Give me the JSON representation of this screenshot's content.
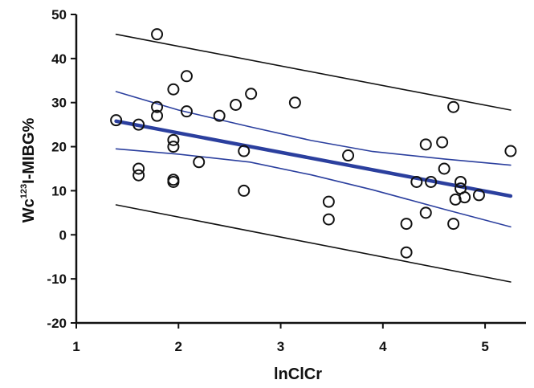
{
  "chart_data": {
    "type": "scatter",
    "xlabel": "lnClCr",
    "ylabel": {
      "prefix": "Wc",
      "superscript": "123",
      "suffix": "I-MIBG%"
    },
    "xlim": [
      1,
      5.4
    ],
    "ylim": [
      -20,
      50
    ],
    "x_ticks": [
      1,
      2,
      3,
      4,
      5
    ],
    "y_ticks": [
      -20,
      -10,
      0,
      10,
      20,
      30,
      40,
      50
    ],
    "grid": false,
    "legend": "none",
    "points": [
      {
        "x": 1.39,
        "y": 26
      },
      {
        "x": 1.61,
        "y": 25
      },
      {
        "x": 1.61,
        "y": 15
      },
      {
        "x": 1.61,
        "y": 13.5
      },
      {
        "x": 1.79,
        "y": 45.5
      },
      {
        "x": 1.79,
        "y": 29
      },
      {
        "x": 1.79,
        "y": 27
      },
      {
        "x": 1.95,
        "y": 33
      },
      {
        "x": 1.95,
        "y": 21.5
      },
      {
        "x": 1.95,
        "y": 20
      },
      {
        "x": 1.95,
        "y": 12.5
      },
      {
        "x": 1.95,
        "y": 12
      },
      {
        "x": 2.08,
        "y": 36
      },
      {
        "x": 2.08,
        "y": 28
      },
      {
        "x": 2.2,
        "y": 16.5
      },
      {
        "x": 2.4,
        "y": 27
      },
      {
        "x": 2.56,
        "y": 29.5
      },
      {
        "x": 2.64,
        "y": 19
      },
      {
        "x": 2.64,
        "y": 10
      },
      {
        "x": 2.71,
        "y": 32
      },
      {
        "x": 3.14,
        "y": 30
      },
      {
        "x": 3.47,
        "y": 7.5
      },
      {
        "x": 3.47,
        "y": 3.5
      },
      {
        "x": 3.66,
        "y": 18
      },
      {
        "x": 4.23,
        "y": 2.5
      },
      {
        "x": 4.23,
        "y": -4
      },
      {
        "x": 4.33,
        "y": 12
      },
      {
        "x": 4.42,
        "y": 20.5
      },
      {
        "x": 4.42,
        "y": 5
      },
      {
        "x": 4.47,
        "y": 12
      },
      {
        "x": 4.58,
        "y": 21
      },
      {
        "x": 4.6,
        "y": 15
      },
      {
        "x": 4.69,
        "y": 29
      },
      {
        "x": 4.69,
        "y": 2.5
      },
      {
        "x": 4.71,
        "y": 8
      },
      {
        "x": 4.76,
        "y": 12
      },
      {
        "x": 4.76,
        "y": 10.5
      },
      {
        "x": 4.8,
        "y": 8.5
      },
      {
        "x": 4.94,
        "y": 9
      },
      {
        "x": 5.25,
        "y": 19
      }
    ],
    "lines": [
      {
        "role": "regression",
        "color": "#2b3f9e",
        "width": 4.5,
        "points": [
          [
            1.39,
            25.8
          ],
          [
            5.25,
            8.8
          ]
        ]
      },
      {
        "role": "ci-upper",
        "color": "#2b3f9e",
        "width": 1.6,
        "points": [
          [
            1.39,
            32.5
          ],
          [
            2.0,
            28.3
          ],
          [
            2.7,
            24.5
          ],
          [
            3.3,
            21.4
          ],
          [
            3.9,
            18.9
          ],
          [
            4.6,
            17.2
          ],
          [
            5.25,
            15.8
          ]
        ]
      },
      {
        "role": "ci-lower",
        "color": "#2b3f9e",
        "width": 1.6,
        "points": [
          [
            1.39,
            19.5
          ],
          [
            2.0,
            18.3
          ],
          [
            2.7,
            16.5
          ],
          [
            3.3,
            13.6
          ],
          [
            3.9,
            10.2
          ],
          [
            4.6,
            5.8
          ],
          [
            5.25,
            1.8
          ]
        ]
      },
      {
        "role": "pi-upper",
        "color": "#111111",
        "width": 1.6,
        "points": [
          [
            1.39,
            45.5
          ],
          [
            5.25,
            28.3
          ]
        ]
      },
      {
        "role": "pi-lower",
        "color": "#111111",
        "width": 1.6,
        "points": [
          [
            1.39,
            6.8
          ],
          [
            5.25,
            -10.7
          ]
        ]
      }
    ]
  }
}
